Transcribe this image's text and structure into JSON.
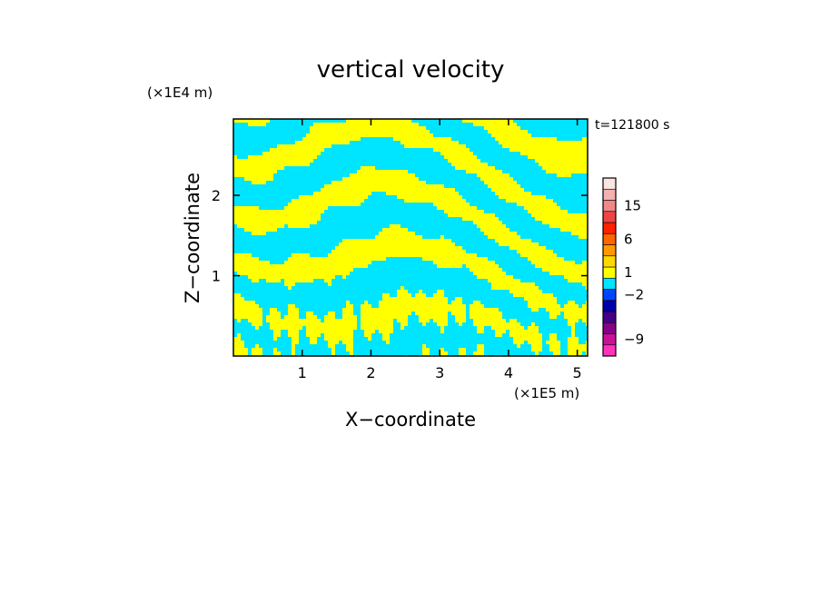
{
  "chart_data": {
    "type": "heatmap",
    "title": "vertical velocity",
    "xlabel": "X−coordinate",
    "ylabel": "Z−coordinate",
    "x_unit": "(×1E5 m)",
    "z_unit": "(×1E4 m)",
    "time_label": "t=121800 s",
    "xlim": [
      0,
      5.15
    ],
    "zlim": [
      0,
      2.95
    ],
    "x_ticks": [
      {
        "value": 1,
        "label": "1"
      },
      {
        "value": 2,
        "label": "2"
      },
      {
        "value": 3,
        "label": "3"
      },
      {
        "value": 4,
        "label": "4"
      },
      {
        "value": 5,
        "label": "5"
      }
    ],
    "z_ticks": [
      {
        "value": 1,
        "label": "1"
      },
      {
        "value": 2,
        "label": "2"
      }
    ],
    "colorbar": {
      "levels": [
        {
          "color": "#ff33bb"
        },
        {
          "color": "#cc1199"
        },
        {
          "color": "#880088"
        },
        {
          "color": "#440088"
        },
        {
          "color": "#0000aa"
        },
        {
          "color": "#0044ff"
        },
        {
          "color": "#00e5ff"
        },
        {
          "color": "#ffff00"
        },
        {
          "color": "#ffd700"
        },
        {
          "color": "#ff9900"
        },
        {
          "color": "#ff6600"
        },
        {
          "color": "#ff2200"
        },
        {
          "color": "#ee4444"
        },
        {
          "color": "#f08888"
        },
        {
          "color": "#f5b0b0"
        },
        {
          "color": "#fbe5e0"
        }
      ],
      "labels": [
        {
          "text": "−9",
          "level": 1
        },
        {
          "text": "−2",
          "level": 5
        },
        {
          "text": "1",
          "level": 7
        },
        {
          "text": "6",
          "level": 10
        },
        {
          "text": "15",
          "level": 13
        }
      ]
    },
    "field_palette": {
      "negative": "#00e5ff",
      "positive": "#ffff00"
    }
  }
}
